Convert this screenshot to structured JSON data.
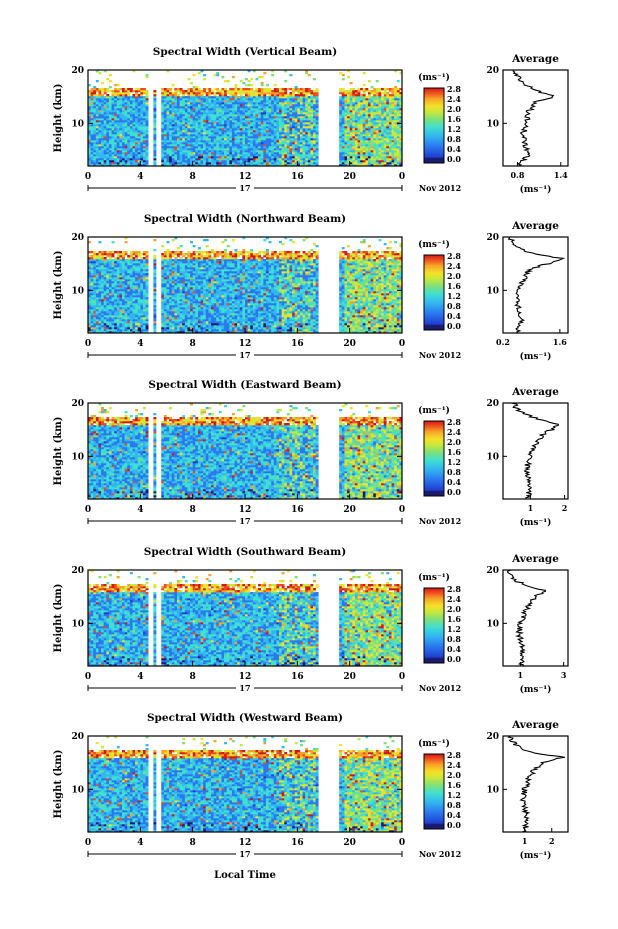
{
  "figure": {
    "panels": [
      {
        "title": "Spectral Width (Vertical Beam)",
        "avg_xticks": [
          "0.8",
          "1.4"
        ]
      },
      {
        "title": "Spectral Width (Northward Beam)",
        "avg_xticks": [
          "0.2",
          "1.6"
        ]
      },
      {
        "title": "Spectral Width (Eastward Beam)",
        "avg_xticks": [
          "1",
          "2"
        ]
      },
      {
        "title": "Spectral Width (Southward Beam)",
        "avg_xticks": [
          "1",
          "3"
        ]
      },
      {
        "title": "Spectral Width (Westward Beam)",
        "avg_xticks": [
          "1",
          "2"
        ]
      }
    ],
    "y_label": "Height (km)",
    "y_ticks": [
      "20",
      "10"
    ],
    "x_ticks": [
      "0",
      "4",
      "8",
      "12",
      "16",
      "20",
      "0"
    ],
    "day_label": "17",
    "month_label": "Nov 2012",
    "x_label": "Local Time",
    "colorbar_title": "(ms⁻¹)",
    "colorbar_ticks": [
      "2.8",
      "2.4",
      "2.0",
      "1.6",
      "1.2",
      "0.8",
      "0.4",
      "0.0"
    ],
    "avg_title": "Average",
    "avg_unit": "(ms⁻¹)"
  },
  "chart_data": {
    "type": "heatmap",
    "x_range_hours": [
      0,
      24
    ],
    "y_range_km": [
      2,
      20
    ],
    "colorbar_range_ms": [
      0,
      3.0
    ],
    "data_gaps_hours": [
      [
        4.6,
        4.9
      ],
      [
        5.2,
        5.5
      ],
      [
        17.7,
        19.2
      ]
    ],
    "colormap": [
      "#1a1a6e",
      "#1f3fd0",
      "#2a78f0",
      "#33b7f0",
      "#40e0d0",
      "#7de07a",
      "#c8e83c",
      "#f5e02a",
      "#f7a226",
      "#ee4a1e",
      "#d01818"
    ],
    "average_profiles": [
      {
        "beam": "Vertical",
        "xlim": [
          0.6,
          1.5
        ],
        "height_km": [
          2,
          4,
          6,
          8,
          10,
          12,
          14,
          15,
          16,
          17,
          18,
          19,
          20
        ],
        "width_ms": [
          0.82,
          0.95,
          0.9,
          0.88,
          0.92,
          0.95,
          1.05,
          1.3,
          1.1,
          0.95,
          0.85,
          0.8,
          0.75
        ]
      },
      {
        "beam": "Northward",
        "xlim": [
          0.2,
          1.8
        ],
        "height_km": [
          2,
          4,
          6,
          8,
          10,
          12,
          14,
          15,
          16,
          17,
          18,
          19,
          20
        ],
        "width_ms": [
          0.55,
          0.65,
          0.6,
          0.55,
          0.58,
          0.7,
          0.85,
          1.3,
          1.65,
          0.9,
          0.55,
          0.45,
          0.35
        ]
      },
      {
        "beam": "Eastward",
        "xlim": [
          0.2,
          2.1
        ],
        "height_km": [
          2,
          4,
          6,
          8,
          10,
          12,
          14,
          15,
          16,
          17,
          18,
          19,
          20
        ],
        "width_ms": [
          0.9,
          1.0,
          0.95,
          0.9,
          1.0,
          1.15,
          1.35,
          1.6,
          1.8,
          1.2,
          0.8,
          0.6,
          0.5
        ]
      },
      {
        "beam": "Southward",
        "xlim": [
          0.2,
          3.2
        ],
        "height_km": [
          2,
          4,
          6,
          8,
          10,
          12,
          14,
          15,
          16,
          17,
          18,
          19,
          20
        ],
        "width_ms": [
          1.0,
          1.1,
          1.05,
          0.95,
          1.0,
          1.2,
          1.5,
          1.7,
          2.2,
          1.3,
          0.8,
          0.6,
          0.5
        ]
      },
      {
        "beam": "Westward",
        "xlim": [
          0.2,
          2.6
        ],
        "height_km": [
          2,
          4,
          6,
          8,
          10,
          12,
          14,
          15,
          16,
          17,
          18,
          19,
          20
        ],
        "width_ms": [
          1.0,
          1.1,
          1.05,
          0.95,
          1.0,
          1.15,
          1.4,
          1.7,
          2.4,
          1.2,
          0.75,
          0.55,
          0.45
        ]
      }
    ]
  }
}
